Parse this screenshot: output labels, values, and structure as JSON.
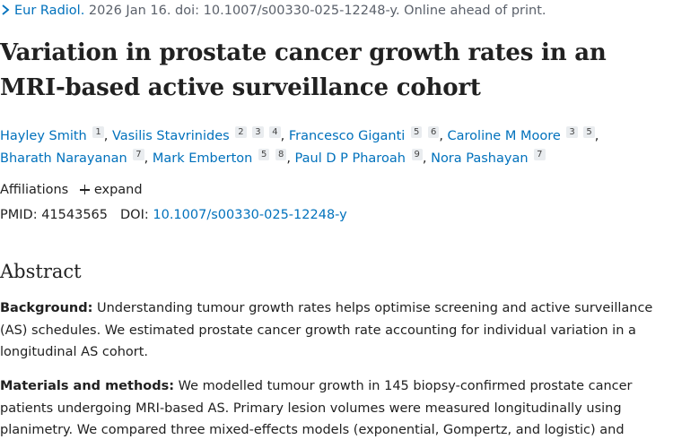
{
  "citation": {
    "journal": "Eur Radiol.",
    "details": " 2026 Jan 16. doi: 10.1007/s00330-025-12248-y. Online ahead of print."
  },
  "title": "Variation in prostate cancer growth rates in an MRI-based active surveillance cohort",
  "authors": [
    {
      "name": "Hayley Smith",
      "affs": [
        "1"
      ],
      "sep": ","
    },
    {
      "name": "Vasilis Stavrinides",
      "affs": [
        "2",
        "3",
        "4"
      ],
      "sep": ","
    },
    {
      "name": "Francesco Giganti",
      "affs": [
        "5",
        "6"
      ],
      "sep": ","
    },
    {
      "name": "Caroline M Moore",
      "affs": [
        "3",
        "5"
      ],
      "sep": ","
    },
    {
      "name": "Bharath Narayanan",
      "affs": [
        "7"
      ],
      "sep": ","
    },
    {
      "name": "Mark Emberton",
      "affs": [
        "5",
        "8"
      ],
      "sep": ","
    },
    {
      "name": "Paul D P Pharoah",
      "affs": [
        "9"
      ],
      "sep": ","
    },
    {
      "name": "Nora Pashayan",
      "affs": [
        "7"
      ],
      "sep": ""
    }
  ],
  "affiliations": {
    "label": "Affiliations",
    "expand_label": "expand"
  },
  "identifiers": {
    "pmid_label": "PMID:",
    "pmid": "41543565",
    "doi_label": "DOI:",
    "doi": "10.1007/s00330-025-12248-y"
  },
  "abstract": {
    "heading": "Abstract",
    "background_label": "Background:",
    "background_text": " Understanding tumour growth rates helps optimise screening and active surveillance (AS) schedules. We estimated prostate cancer growth rate accounting for individual variation in a longitudinal AS cohort.",
    "methods_label": "Materials and methods:",
    "methods_text": " We modelled tumour growth in 145 biopsy-confirmed prostate cancer patients undergoing MRI-based AS. Primary lesion volumes were measured longitudinally using planimetry. We compared three mixed-effects models (exponential, Gompertz, and logistic) and"
  },
  "colors": {
    "link": "#0071bc",
    "text": "#212121",
    "muted": "#5b616b",
    "badge_bg": "#e9ecef"
  }
}
